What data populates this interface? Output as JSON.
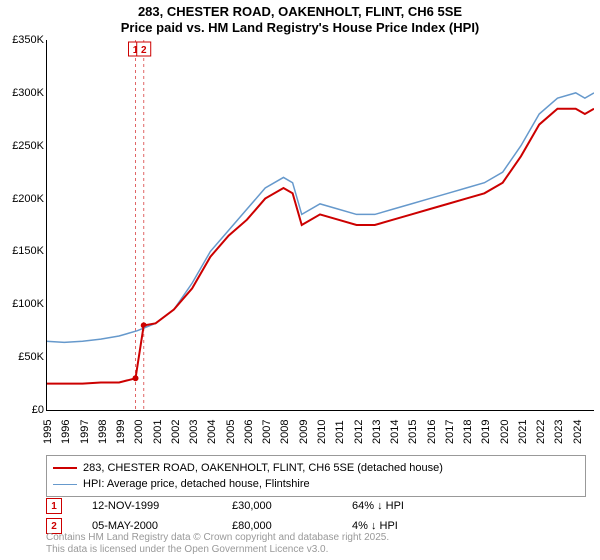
{
  "title_line1": "283, CHESTER ROAD, OAKENHOLT, FLINT, CH6 5SE",
  "title_line2": "Price paid vs. HM Land Registry's House Price Index (HPI)",
  "chart": {
    "type": "line",
    "background_color": "#ffffff",
    "x": {
      "min": 1995,
      "max": 2025,
      "ticks": [
        1995,
        1996,
        1997,
        1998,
        1999,
        2000,
        2001,
        2002,
        2003,
        2004,
        2005,
        2006,
        2007,
        2008,
        2009,
        2010,
        2011,
        2012,
        2013,
        2014,
        2015,
        2016,
        2017,
        2018,
        2019,
        2020,
        2021,
        2022,
        2023,
        2024
      ],
      "label_fontsize": 11
    },
    "y": {
      "min": 0,
      "max": 350000,
      "ticks": [
        0,
        50000,
        100000,
        150000,
        200000,
        250000,
        300000,
        350000
      ],
      "tick_labels": [
        "£0",
        "£50K",
        "£100K",
        "£150K",
        "£200K",
        "£250K",
        "£300K",
        "£350K"
      ],
      "label_fontsize": 11
    },
    "series": [
      {
        "id": "price_paid",
        "label": "283, CHESTER ROAD, OAKENHOLT, FLINT, CH6 5SE (detached house)",
        "color": "#cc0000",
        "line_width": 2,
        "data": [
          [
            1995,
            25000
          ],
          [
            1996,
            25000
          ],
          [
            1997,
            25000
          ],
          [
            1998,
            26000
          ],
          [
            1999,
            26000
          ],
          [
            1999.9,
            30000
          ],
          [
            2000.35,
            80000
          ],
          [
            2001,
            82000
          ],
          [
            2002,
            95000
          ],
          [
            2003,
            115000
          ],
          [
            2004,
            145000
          ],
          [
            2005,
            165000
          ],
          [
            2006,
            180000
          ],
          [
            2007,
            200000
          ],
          [
            2008,
            210000
          ],
          [
            2008.5,
            205000
          ],
          [
            2009,
            175000
          ],
          [
            2010,
            185000
          ],
          [
            2011,
            180000
          ],
          [
            2012,
            175000
          ],
          [
            2013,
            175000
          ],
          [
            2014,
            180000
          ],
          [
            2015,
            185000
          ],
          [
            2016,
            190000
          ],
          [
            2017,
            195000
          ],
          [
            2018,
            200000
          ],
          [
            2019,
            205000
          ],
          [
            2020,
            215000
          ],
          [
            2021,
            240000
          ],
          [
            2022,
            270000
          ],
          [
            2023,
            285000
          ],
          [
            2024,
            285000
          ],
          [
            2024.5,
            280000
          ],
          [
            2025,
            285000
          ]
        ]
      },
      {
        "id": "hpi",
        "label": "HPI: Average price, detached house, Flintshire",
        "color": "#6699cc",
        "line_width": 1.5,
        "data": [
          [
            1995,
            65000
          ],
          [
            1996,
            64000
          ],
          [
            1997,
            65000
          ],
          [
            1998,
            67000
          ],
          [
            1999,
            70000
          ],
          [
            2000,
            75000
          ],
          [
            2001,
            82000
          ],
          [
            2002,
            95000
          ],
          [
            2003,
            120000
          ],
          [
            2004,
            150000
          ],
          [
            2005,
            170000
          ],
          [
            2006,
            190000
          ],
          [
            2007,
            210000
          ],
          [
            2008,
            220000
          ],
          [
            2008.5,
            215000
          ],
          [
            2009,
            185000
          ],
          [
            2010,
            195000
          ],
          [
            2011,
            190000
          ],
          [
            2012,
            185000
          ],
          [
            2013,
            185000
          ],
          [
            2014,
            190000
          ],
          [
            2015,
            195000
          ],
          [
            2016,
            200000
          ],
          [
            2017,
            205000
          ],
          [
            2018,
            210000
          ],
          [
            2019,
            215000
          ],
          [
            2020,
            225000
          ],
          [
            2021,
            250000
          ],
          [
            2022,
            280000
          ],
          [
            2023,
            295000
          ],
          [
            2024,
            300000
          ],
          [
            2024.5,
            295000
          ],
          [
            2025,
            300000
          ]
        ]
      }
    ],
    "markers": [
      {
        "n": "1",
        "x": 1999.9,
        "y": 30000,
        "color": "#cc0000"
      },
      {
        "n": "2",
        "x": 2000.35,
        "y": 80000,
        "color": "#cc0000"
      }
    ],
    "marker_lines": {
      "color": "#cc0000",
      "dash": "3,3",
      "width": 1
    }
  },
  "legend": {
    "items": [
      {
        "color": "#cc0000",
        "width": 2,
        "label": "283, CHESTER ROAD, OAKENHOLT, FLINT, CH6 5SE (detached house)"
      },
      {
        "color": "#6699cc",
        "width": 1.5,
        "label": "HPI: Average price, detached house, Flintshire"
      }
    ]
  },
  "sales": [
    {
      "n": "1",
      "date": "12-NOV-1999",
      "price": "£30,000",
      "delta": "64% ↓ HPI"
    },
    {
      "n": "2",
      "date": "05-MAY-2000",
      "price": "£80,000",
      "delta": "4% ↓ HPI"
    }
  ],
  "footer": {
    "line1": "Contains HM Land Registry data © Crown copyright and database right 2025.",
    "line2": "This data is licensed under the Open Government Licence v3.0."
  }
}
